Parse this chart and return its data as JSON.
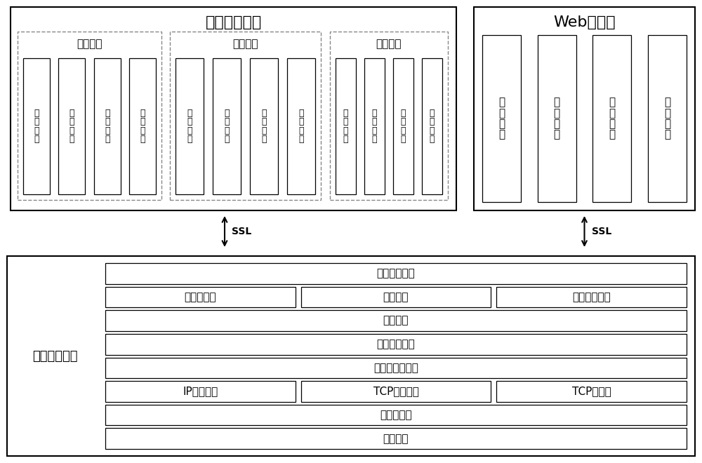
{
  "bg_color": "#ffffff",
  "border_color": "#000000",
  "text_color": "#000000",
  "sec_center_title": "安全管理中心",
  "web_console_title": "Web控制台",
  "mail_block_label": "邮件阻断设备",
  "config_mgmt": "配置管理",
  "device_mgmt": "设备管理",
  "log_mgmt": "日志管理",
  "config_items": [
    [
      "策",
      "略",
      "管",
      "理"
    ],
    [
      "用",
      "户",
      "管",
      "理"
    ],
    [
      "事",
      "件",
      "管",
      "理"
    ],
    [
      "升",
      "级",
      "管",
      "理"
    ]
  ],
  "device_items": [
    [
      "状",
      "态",
      "监",
      "控"
    ],
    [
      "系",
      "统",
      "监",
      "控"
    ],
    [
      "流",
      "量",
      "监",
      "控"
    ],
    [
      "协",
      "议",
      "还",
      "原"
    ]
  ],
  "log_items": [
    [
      "日",
      "志",
      "查",
      "询"
    ],
    [
      "日",
      "志",
      "分",
      "析"
    ],
    [
      "日",
      "志",
      "备",
      "份"
    ],
    [
      "日",
      "志",
      "恢",
      "复"
    ]
  ],
  "web_items": [
    [
      "配",
      "置",
      "管",
      "理"
    ],
    [
      "系",
      "统",
      "监",
      "控"
    ],
    [
      "日",
      "志",
      "管",
      "理"
    ],
    [
      "策",
      "略",
      "管",
      "理"
    ]
  ],
  "lower_rows": [
    {
      "type": "single",
      "text": "邮件日志管理"
    },
    {
      "type": "triple",
      "texts": [
        "数据包丢弃",
        "会话丢弃",
        "敏感邮件告警"
      ]
    },
    {
      "type": "single",
      "text": "事件分析"
    },
    {
      "type": "single",
      "text": "敏感信息识别"
    },
    {
      "type": "single",
      "text": "协议识别与分析"
    },
    {
      "type": "triple",
      "texts": [
        "IP会话重组",
        "TCP状态跟踪",
        "TCP流汇聚"
      ]
    },
    {
      "type": "single",
      "text": "数据包捕获"
    },
    {
      "type": "single",
      "text": "透明传输"
    }
  ],
  "ssl_label": "SSL"
}
